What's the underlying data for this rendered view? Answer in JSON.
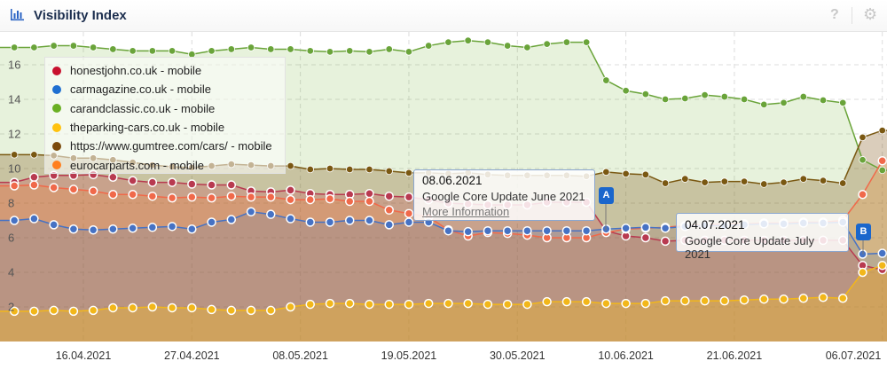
{
  "header": {
    "title": "Visibility Index",
    "icon": "bar-chart-icon",
    "help_icon": "question-icon",
    "settings_icon": "gear-icon"
  },
  "chart_data": {
    "type": "area",
    "title": "Visibility Index",
    "ylim": [
      0,
      18
    ],
    "yticks": [
      2,
      4,
      6,
      8,
      10,
      12,
      14,
      16
    ],
    "xticks": [
      "16.04.2021",
      "27.04.2021",
      "08.05.2021",
      "19.05.2021",
      "30.05.2021",
      "10.06.2021",
      "21.06.2021",
      "06.07.2021"
    ],
    "grid": true,
    "legend_position": "top-left",
    "x": [
      "09.04.2021",
      "11.04.2021",
      "13.04.2021",
      "15.04.2021",
      "17.04.2021",
      "19.04.2021",
      "21.04.2021",
      "23.04.2021",
      "25.04.2021",
      "27.04.2021",
      "29.04.2021",
      "01.05.2021",
      "03.05.2021",
      "05.05.2021",
      "07.05.2021",
      "09.05.2021",
      "11.05.2021",
      "13.05.2021",
      "15.05.2021",
      "17.05.2021",
      "19.05.2021",
      "21.05.2021",
      "23.05.2021",
      "25.05.2021",
      "27.05.2021",
      "29.05.2021",
      "31.05.2021",
      "02.06.2021",
      "04.06.2021",
      "06.06.2021",
      "08.06.2021",
      "10.06.2021",
      "12.06.2021",
      "14.06.2021",
      "16.06.2021",
      "18.06.2021",
      "20.06.2021",
      "22.06.2021",
      "24.06.2021",
      "26.06.2021",
      "28.06.2021",
      "30.06.2021",
      "02.07.2021",
      "04.07.2021",
      "06.07.2021"
    ],
    "series": [
      {
        "name": "honestjohn.co.uk - mobile",
        "color": "#c8102e",
        "line": "#b83a50",
        "values": [
          9.2,
          9.5,
          9.6,
          9.6,
          9.65,
          9.5,
          9.3,
          9.2,
          9.2,
          9.1,
          9.05,
          9.05,
          8.7,
          8.65,
          8.75,
          8.55,
          8.5,
          8.5,
          8.55,
          8.4,
          8.35,
          8.2,
          8.0,
          7.95,
          7.9,
          7.9,
          7.9,
          8.05,
          8.05,
          8.05,
          6.4,
          6.1,
          6.0,
          5.8,
          5.85,
          5.85,
          5.85,
          5.85,
          5.85,
          5.85,
          5.85,
          5.85,
          5.85,
          4.4,
          4.15
        ]
      },
      {
        "name": "carmagazine.co.uk - mobile",
        "color": "#1f6fd1",
        "line": "#4672c4",
        "values": [
          7.0,
          7.1,
          6.75,
          6.5,
          6.45,
          6.5,
          6.55,
          6.6,
          6.65,
          6.5,
          6.9,
          7.05,
          7.5,
          7.35,
          7.1,
          6.9,
          6.9,
          7.0,
          7.0,
          6.75,
          6.9,
          6.9,
          6.4,
          6.35,
          6.4,
          6.4,
          6.4,
          6.4,
          6.4,
          6.4,
          6.5,
          6.55,
          6.6,
          6.55,
          6.65,
          6.7,
          6.7,
          6.75,
          6.8,
          6.8,
          6.85,
          6.85,
          6.9,
          5.05,
          5.1
        ]
      },
      {
        "name": "carandclassic.co.uk - mobile",
        "color": "#6ab023",
        "line": "#6aa43a",
        "values": [
          17.0,
          17.0,
          17.1,
          17.1,
          17.0,
          16.9,
          16.8,
          16.8,
          16.8,
          16.6,
          16.8,
          16.9,
          17.0,
          16.9,
          16.9,
          16.8,
          16.75,
          16.8,
          16.75,
          16.9,
          16.75,
          17.1,
          17.3,
          17.4,
          17.3,
          17.1,
          17.0,
          17.2,
          17.3,
          17.3,
          15.1,
          14.5,
          14.3,
          14.0,
          14.05,
          14.25,
          14.15,
          14.0,
          13.7,
          13.8,
          14.15,
          13.95,
          13.8,
          10.5,
          9.9
        ]
      },
      {
        "name": "theparking-cars.co.uk - mobile",
        "color": "#ffc20e",
        "line": "#f2b71a",
        "values": [
          1.75,
          1.75,
          1.8,
          1.75,
          1.8,
          1.95,
          1.95,
          2.0,
          1.95,
          1.95,
          1.85,
          1.8,
          1.8,
          1.8,
          2.0,
          2.15,
          2.2,
          2.2,
          2.15,
          2.15,
          2.15,
          2.2,
          2.2,
          2.2,
          2.15,
          2.15,
          2.15,
          2.3,
          2.3,
          2.3,
          2.2,
          2.2,
          2.2,
          2.35,
          2.35,
          2.35,
          2.35,
          2.4,
          2.45,
          2.45,
          2.5,
          2.55,
          2.5,
          4.0,
          4.4
        ]
      },
      {
        "name": "https://www.gumtree.com/cars/ - mobile",
        "color": "#7b4a0c",
        "line": "#7a5812",
        "values": [
          10.8,
          10.8,
          10.75,
          10.6,
          10.6,
          10.5,
          10.35,
          10.2,
          10.1,
          10.05,
          10.15,
          10.25,
          10.2,
          10.15,
          10.15,
          9.95,
          10.0,
          9.95,
          9.95,
          9.85,
          9.75,
          9.75,
          9.7,
          9.75,
          9.65,
          9.6,
          9.6,
          9.6,
          9.6,
          9.55,
          9.8,
          9.7,
          9.65,
          9.15,
          9.4,
          9.2,
          9.25,
          9.25,
          9.1,
          9.2,
          9.4,
          9.3,
          9.15,
          11.8,
          12.2
        ]
      },
      {
        "name": "eurocarparts.com - mobile",
        "color": "#ff7f1e",
        "line": "#f0694a",
        "values": [
          9.0,
          9.05,
          8.9,
          8.8,
          8.7,
          8.5,
          8.5,
          8.4,
          8.3,
          8.35,
          8.3,
          8.4,
          8.35,
          8.35,
          8.2,
          8.2,
          8.25,
          8.1,
          8.1,
          7.6,
          7.4,
          7.2,
          6.45,
          6.1,
          6.3,
          6.25,
          6.15,
          6.0,
          6.0,
          6.0,
          6.3,
          6.5,
          6.55,
          6.6,
          6.7,
          6.75,
          6.8,
          6.8,
          6.85,
          6.85,
          6.9,
          6.9,
          7.0,
          8.5,
          10.45
        ]
      }
    ],
    "annotations": [
      {
        "flag": "A",
        "date": "08.06.2021",
        "text": "Google Core Update June 2021",
        "link": "More Information"
      },
      {
        "flag": "B",
        "date": "04.07.2021",
        "text": "Google Core Update July 2021"
      }
    ]
  }
}
